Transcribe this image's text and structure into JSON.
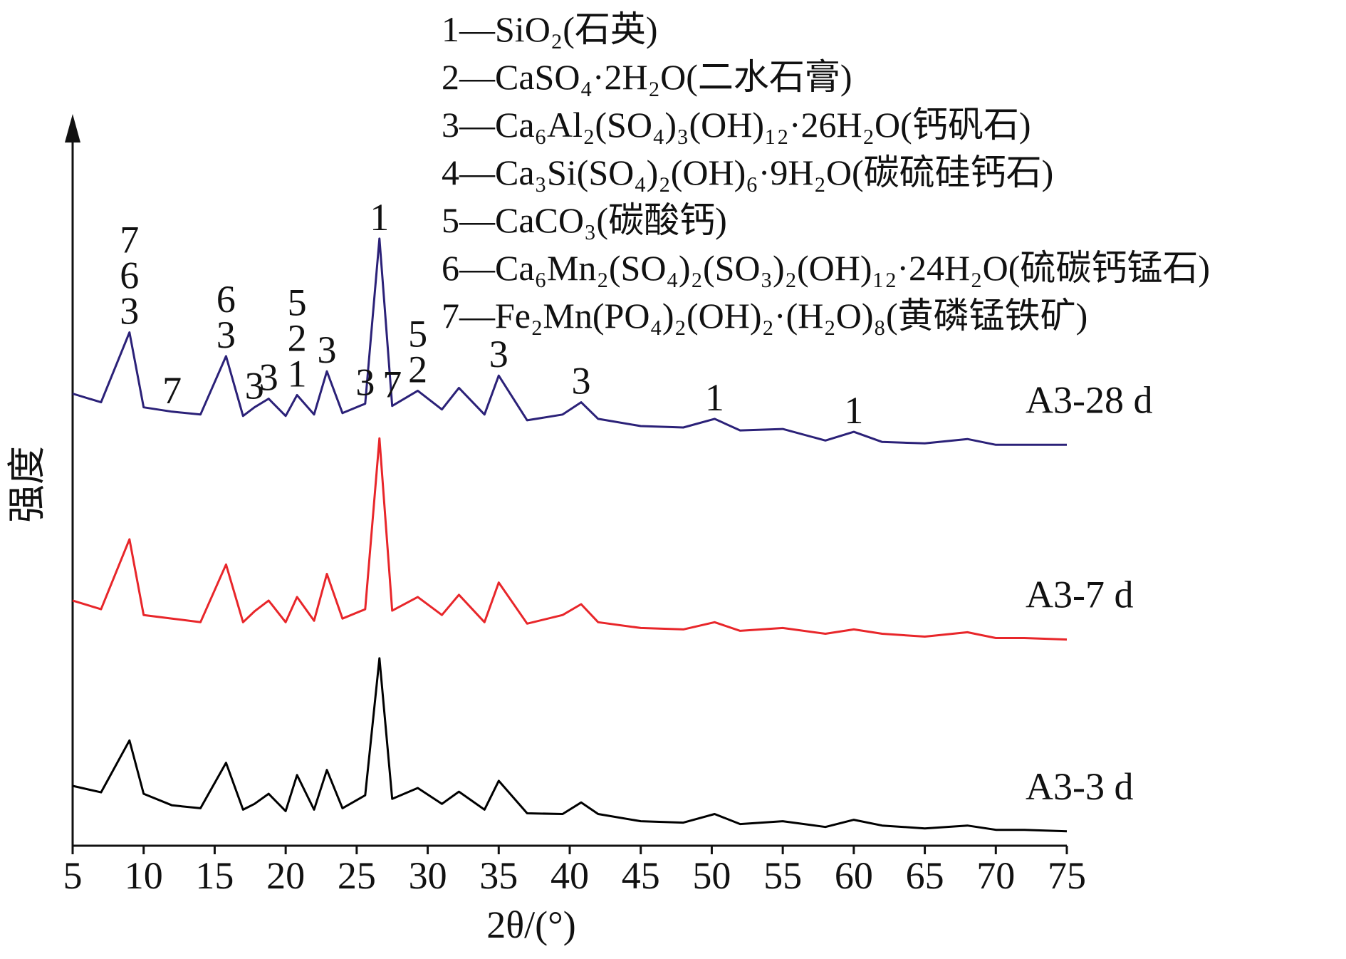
{
  "chart_data": {
    "type": "line",
    "xlabel": "2θ/(°)",
    "ylabel": "强度",
    "xlim": [
      5,
      75
    ],
    "xticks": [
      5,
      10,
      15,
      20,
      25,
      30,
      35,
      40,
      45,
      50,
      55,
      60,
      65,
      70,
      75
    ],
    "ylim": [
      0,
      100
    ],
    "x": [
      5,
      7,
      9,
      10,
      12,
      14,
      15.8,
      17,
      17.8,
      18.8,
      20,
      20.8,
      22,
      22.9,
      24,
      25.6,
      26.6,
      27.5,
      29.3,
      31,
      32.2,
      34,
      35,
      37,
      39.5,
      40.8,
      42,
      45,
      48,
      50.2,
      52,
      55,
      58,
      60,
      62,
      65,
      68,
      70,
      72,
      75
    ],
    "series": [
      {
        "name": "A3-3 d",
        "color": "#000000",
        "values": [
          8.3,
          7.4,
          14.6,
          7.2,
          5.6,
          5.2,
          11.5,
          5.0,
          5.8,
          7.2,
          4.8,
          9.8,
          5.0,
          10.5,
          5.2,
          7.0,
          26.0,
          6.5,
          8.0,
          5.8,
          7.5,
          5.0,
          9.0,
          4.5,
          4.4,
          6.0,
          4.4,
          3.4,
          3.2,
          4.4,
          3.0,
          3.4,
          2.6,
          3.6,
          2.8,
          2.4,
          2.8,
          2.2,
          2.2,
          2.0
        ]
      },
      {
        "name": "A3-7 d",
        "color": "#e8262a",
        "values": [
          34.0,
          32.8,
          42.5,
          32.0,
          31.5,
          31.0,
          39.0,
          31.0,
          32.5,
          34.0,
          31.0,
          34.5,
          31.2,
          37.7,
          31.5,
          32.8,
          56.5,
          32.6,
          34.5,
          32.0,
          34.8,
          31.0,
          36.5,
          30.8,
          32.0,
          33.5,
          31.0,
          30.2,
          30.0,
          31.0,
          29.8,
          30.2,
          29.4,
          30.0,
          29.4,
          29.0,
          29.6,
          28.8,
          28.8,
          28.6
        ]
      },
      {
        "name": "A3-28 d",
        "color": "#2b2178",
        "values": [
          62.7,
          61.5,
          71.2,
          60.8,
          60.2,
          59.8,
          67.9,
          59.6,
          60.8,
          62.0,
          59.6,
          62.5,
          59.8,
          65.8,
          60.0,
          61.3,
          84.2,
          61.0,
          63.1,
          60.5,
          63.5,
          59.8,
          65.2,
          59.0,
          59.8,
          61.5,
          59.2,
          58.2,
          58.0,
          59.2,
          57.6,
          57.8,
          56.2,
          57.4,
          56.0,
          55.8,
          56.4,
          55.6,
          55.6,
          55.6
        ]
      }
    ],
    "peak_labels": [
      {
        "x": 9,
        "labels": [
          "7",
          "6",
          "3"
        ]
      },
      {
        "x": 12,
        "labels": [
          "7"
        ]
      },
      {
        "x": 15.8,
        "labels": [
          "6",
          "3"
        ]
      },
      {
        "x": 17.8,
        "labels": [
          "3"
        ]
      },
      {
        "x": 18.8,
        "labels": [
          "3"
        ]
      },
      {
        "x": 20.8,
        "labels": [
          "5",
          "2",
          "1"
        ]
      },
      {
        "x": 22.9,
        "labels": [
          "3"
        ]
      },
      {
        "x": 25.6,
        "labels": [
          "3"
        ]
      },
      {
        "x": 26.6,
        "labels": [
          "1"
        ]
      },
      {
        "x": 27.5,
        "labels": [
          "7"
        ]
      },
      {
        "x": 29.3,
        "labels": [
          "5",
          "2"
        ]
      },
      {
        "x": 35,
        "labels": [
          "3"
        ]
      },
      {
        "x": 40.8,
        "labels": [
          "3"
        ]
      },
      {
        "x": 50.2,
        "labels": [
          "1"
        ]
      },
      {
        "x": 60,
        "labels": [
          "1"
        ]
      }
    ],
    "notes": [
      "1—SiO₂(石英)",
      "2—CaSO₄·2H₂O(二水石膏)",
      "3—Ca₆Al₂(SO₄)₃(OH)₁₂·26H₂O(钙矾石)",
      "4—Ca₃Si(SO₄)₂(OH)₆·9H₂O(碳硫硅钙石)",
      "5—CaCO₃(碳酸钙)",
      "6—Ca₆Mn₂(SO₄)₂(SO₃)₂(OH)₁₂·24H₂O(硫碳钙锰石)",
      "7—Fe₂Mn(PO₄)₂(OH)₂·(H₂O)₈(黄磷锰铁矿)"
    ]
  }
}
